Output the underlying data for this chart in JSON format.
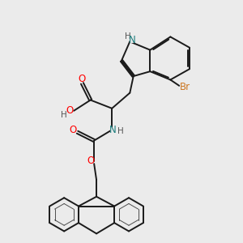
{
  "bg_color": "#ebebeb",
  "line_color": "#1a1a1a",
  "bond_lw": 1.4,
  "atom_colors": {
    "O": "#ff0000",
    "N": "#1a7a7a",
    "Br": "#cc7722",
    "C": "#1a1a1a",
    "H": "#555555"
  },
  "figsize": [
    3.0,
    3.0
  ],
  "dpi": 100
}
